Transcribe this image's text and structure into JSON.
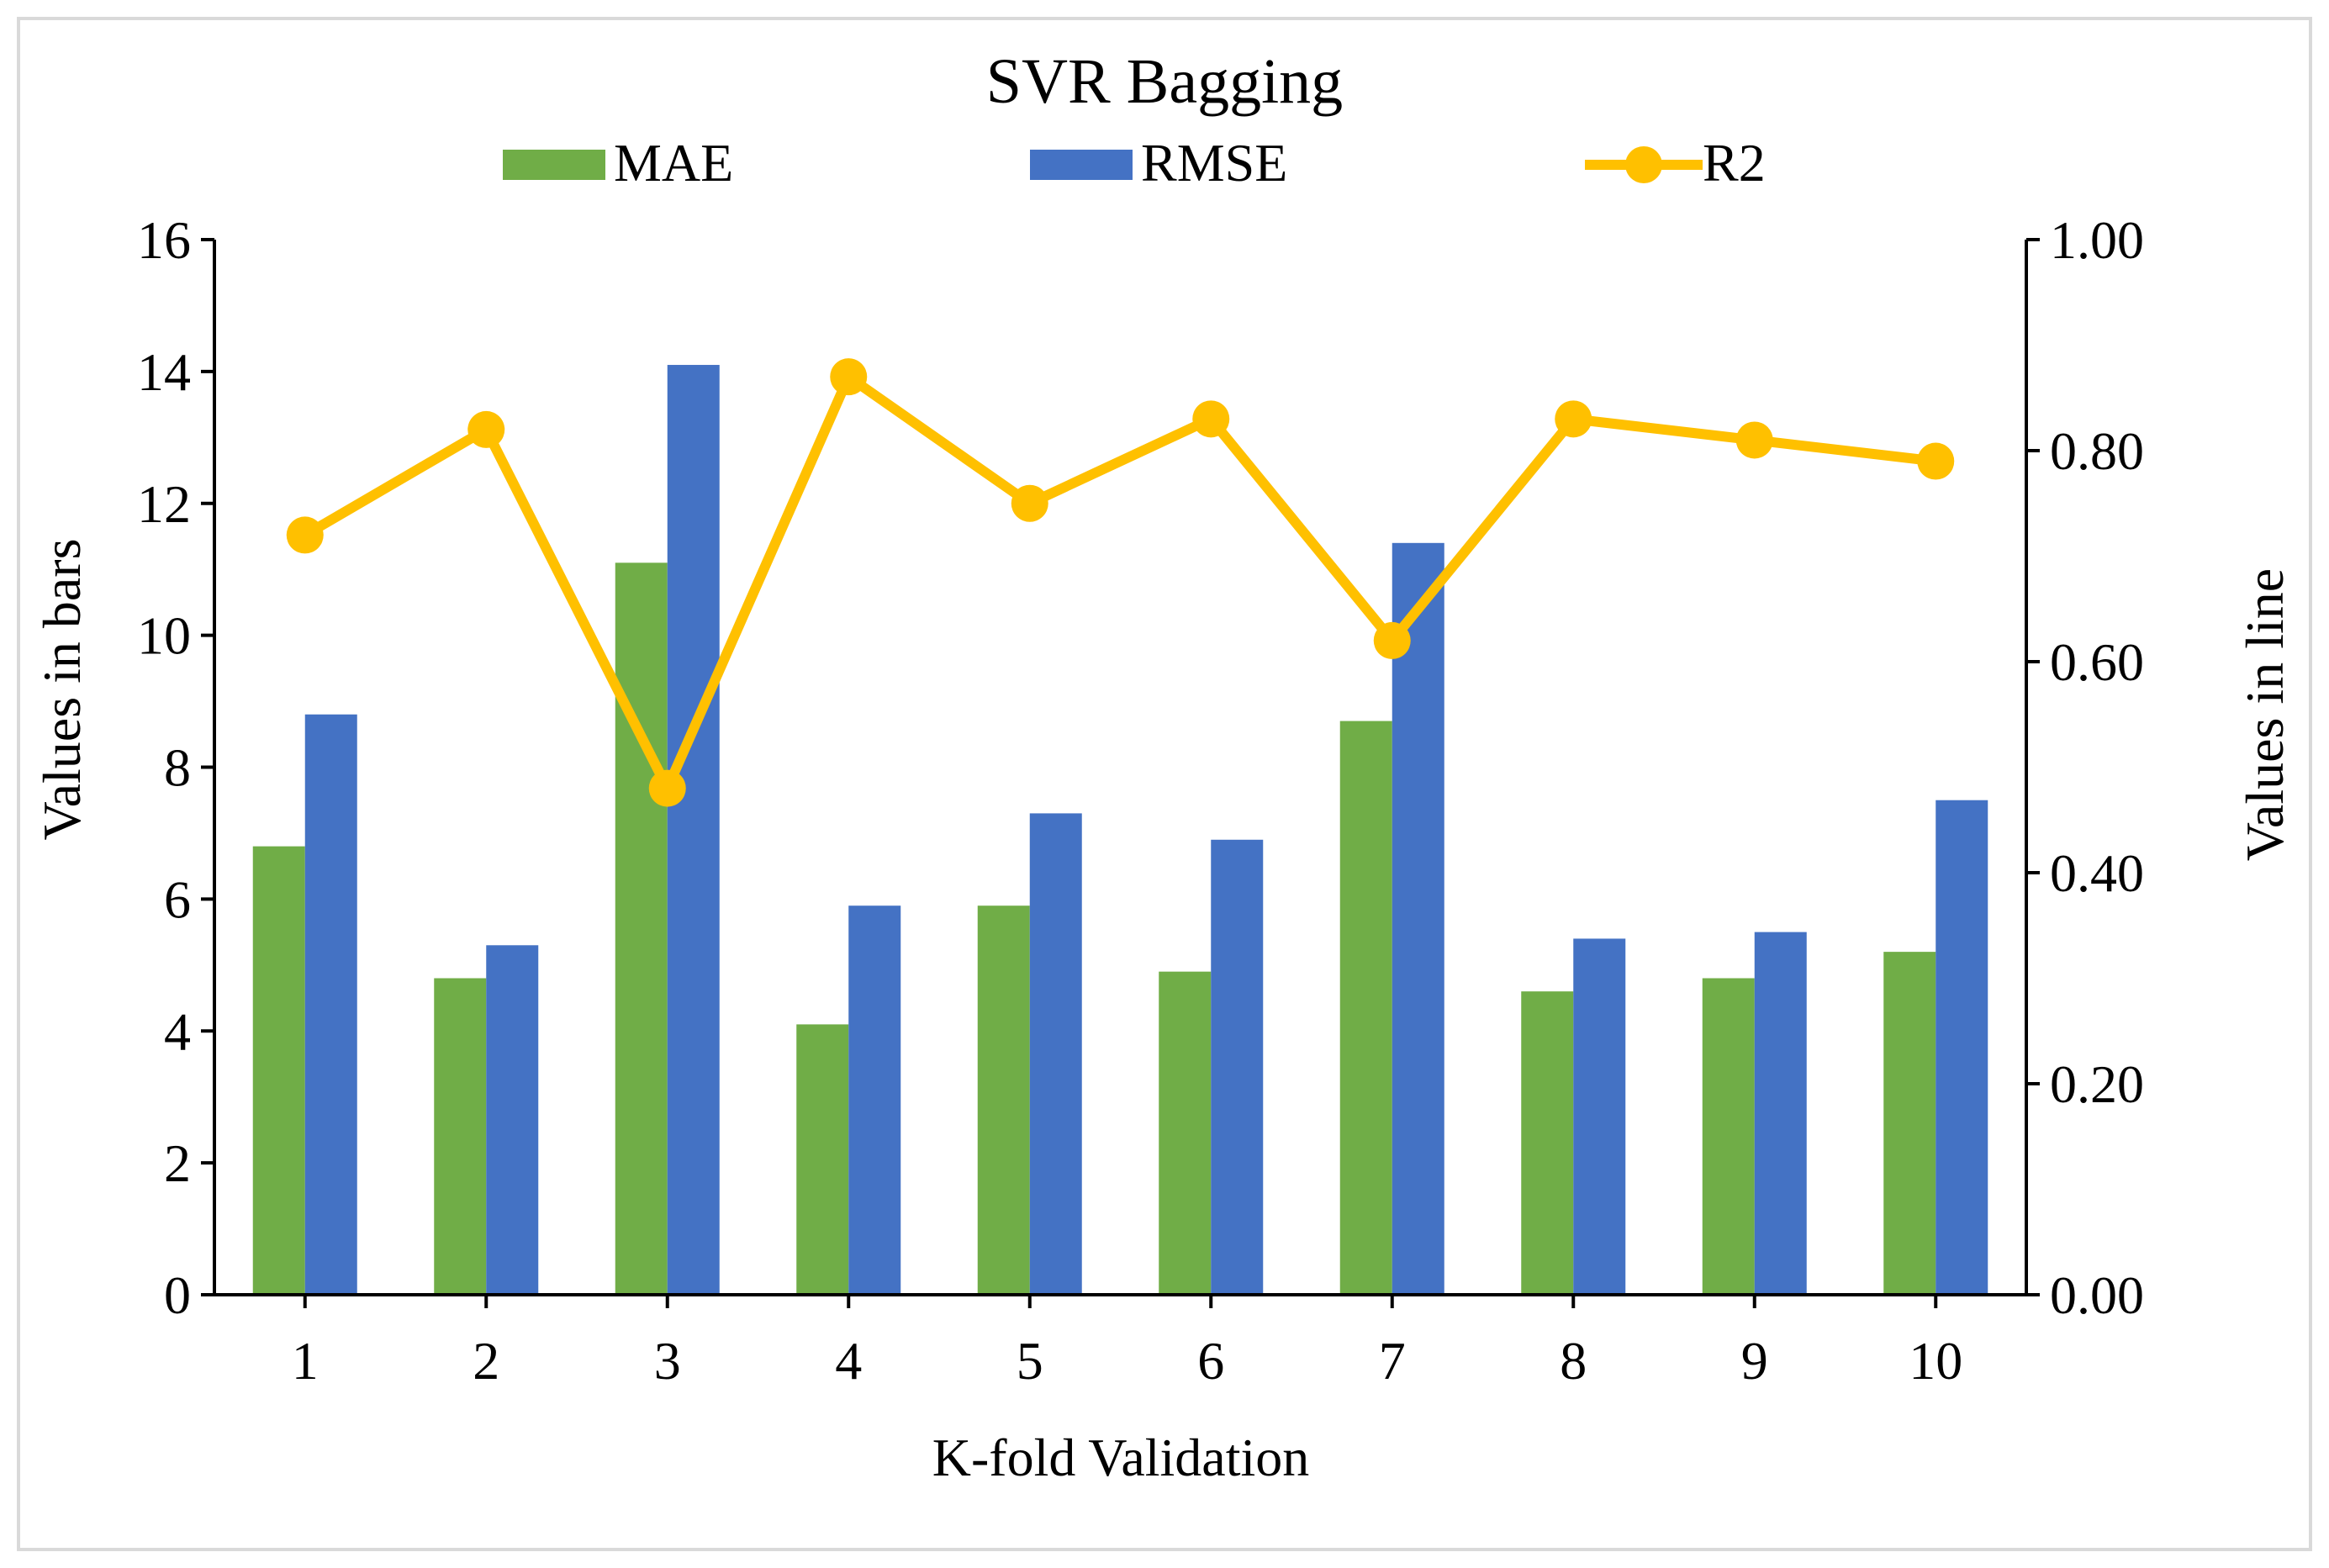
{
  "chart_data": {
    "type": "bar",
    "title": "SVR Bagging",
    "xlabel": "K-fold Validation",
    "ylabel": "Values in bars",
    "y2label": "Values in line",
    "categories": [
      "1",
      "2",
      "3",
      "4",
      "5",
      "6",
      "7",
      "8",
      "9",
      "10"
    ],
    "ylim": [
      0,
      16
    ],
    "yticks": [
      "0",
      "2",
      "4",
      "6",
      "8",
      "10",
      "12",
      "14",
      "16"
    ],
    "y2lim": [
      0,
      1
    ],
    "y2ticks": [
      "0.00",
      "0.20",
      "0.40",
      "0.60",
      "0.80",
      "1.00"
    ],
    "grid": false,
    "legend": "top",
    "series": [
      {
        "name": "MAE",
        "type": "bar",
        "axis": "left",
        "color": "#70AD47",
        "values": [
          6.8,
          4.8,
          11.1,
          4.1,
          5.9,
          4.9,
          8.7,
          4.6,
          4.8,
          5.2
        ]
      },
      {
        "name": "RMSE",
        "type": "bar",
        "axis": "left",
        "color": "#4472C4",
        "values": [
          8.8,
          5.3,
          14.1,
          5.9,
          7.3,
          6.9,
          11.4,
          5.4,
          5.5,
          7.5
        ]
      },
      {
        "name": "R2",
        "type": "line",
        "axis": "right",
        "color": "#FFC000",
        "values": [
          0.72,
          0.82,
          0.48,
          0.87,
          0.75,
          0.83,
          0.62,
          0.83,
          0.81,
          0.79
        ]
      }
    ]
  }
}
